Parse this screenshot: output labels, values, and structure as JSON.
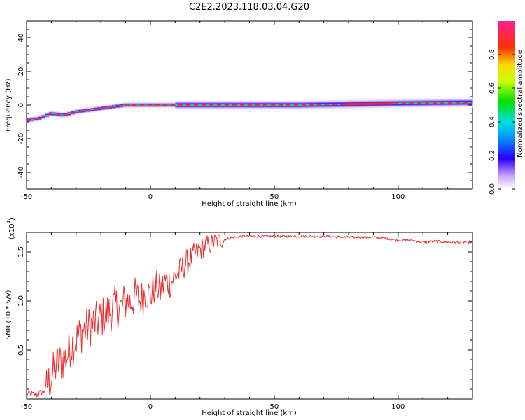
{
  "title": "C2E2.2023.118.03.04.G20",
  "chart_data": [
    {
      "type": "heatmap",
      "xlabel": "Height of straight line (km)",
      "ylabel": "Frequency (Hz)",
      "xlim": [
        -50,
        130
      ],
      "ylim": [
        -50,
        50
      ],
      "xticks": [
        "-50",
        "0",
        "50",
        "100"
      ],
      "yticks": [
        "40",
        "20",
        "0",
        "-20",
        "-40"
      ],
      "colorbar": {
        "label": "Normalized spectral amplitude",
        "range": [
          0,
          1
        ],
        "ticks": [
          "0.0",
          "0.2",
          "0.4",
          "0.6",
          "0.8"
        ]
      },
      "ridge": {
        "x": [
          -50,
          -45,
          -40,
          -35,
          -30,
          -25,
          -20,
          -15,
          -10,
          -5,
          0,
          10,
          20,
          40,
          60,
          80,
          100,
          130
        ],
        "frequency_hz": [
          -9,
          -8,
          -5,
          -6,
          -4,
          -3,
          -2,
          -1,
          0,
          0,
          0,
          0,
          0,
          0,
          0,
          0.5,
          1,
          1.5
        ]
      }
    },
    {
      "type": "line",
      "xlabel": "Height of straight line (km)",
      "ylabel": "SNR (10 * v/v)",
      "yscale_label": "(x10",
      "yscale_exp": "4",
      "yscale_close": ")",
      "xlim": [
        -50,
        130
      ],
      "ylim": [
        0.0,
        1.7
      ],
      "xticks": [
        "-50",
        "0",
        "50",
        "100"
      ],
      "yticks": [
        "0.5",
        "1.0",
        "1.5"
      ],
      "series": [
        {
          "x": [
            -50,
            -46,
            -43,
            -40,
            -38,
            -36,
            -34,
            -32,
            -30,
            -28,
            -26,
            -24,
            -22,
            -20,
            -18,
            -16,
            -14,
            -12,
            -10,
            -8,
            -6,
            -4,
            -2,
            0,
            2,
            4,
            6,
            8,
            10,
            12,
            14,
            16,
            18,
            20,
            22,
            24,
            26,
            28,
            30,
            32,
            34,
            36,
            40,
            45,
            50,
            60,
            70,
            80,
            90,
            95,
            100,
            105,
            110,
            115,
            120,
            125,
            130
          ],
          "values": [
            0.05,
            0.04,
            0.08,
            0.22,
            0.35,
            0.38,
            0.42,
            0.55,
            0.6,
            0.68,
            0.72,
            0.75,
            0.78,
            0.82,
            0.86,
            0.9,
            0.95,
            0.92,
            1.0,
            0.98,
            1.05,
            1.0,
            1.1,
            1.05,
            1.15,
            1.1,
            1.2,
            1.18,
            1.25,
            1.3,
            1.38,
            1.42,
            1.48,
            1.52,
            1.56,
            1.58,
            1.6,
            1.62,
            1.63,
            1.64,
            1.65,
            1.66,
            1.66,
            1.66,
            1.66,
            1.66,
            1.66,
            1.65,
            1.65,
            1.64,
            1.62,
            1.62,
            1.6,
            1.61,
            1.6,
            1.6,
            1.6
          ],
          "color": "#e8302f"
        }
      ]
    }
  ]
}
